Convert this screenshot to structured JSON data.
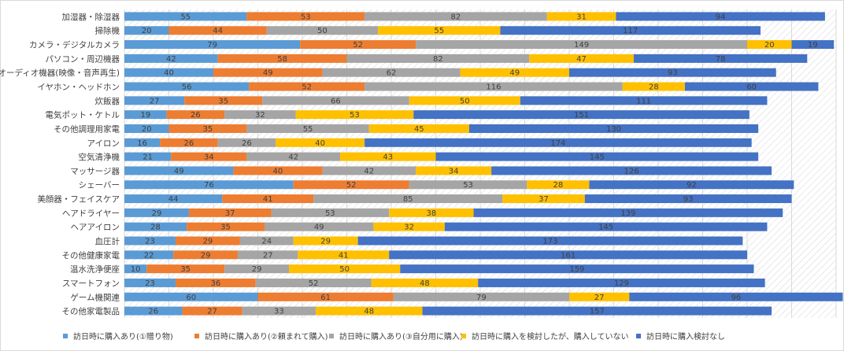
{
  "chart_data": {
    "type": "bar",
    "orientation": "horizontal",
    "stacked": true,
    "title": "",
    "xlabel": "",
    "ylabel": "",
    "xlim": [
      0,
      320
    ],
    "grid": true,
    "legend_position": "bottom",
    "categories": [
      "加湿器・除湿器",
      "掃除機",
      "カメラ・デジタルカメラ",
      "パソコン・周辺機器",
      "オーディオ機器(映像・音声再生)",
      "イヤホン・ヘッドホン",
      "炊飯器",
      "電気ポット・ケトル",
      "その他調理用家電",
      "アイロン",
      "空気清浄機",
      "マッサージ器",
      "シェーバー",
      "美顔器・フェイスケア",
      "ヘアドライヤー",
      "ヘアアイロン",
      "血圧計",
      "その他健康家電",
      "温水洗浄便座",
      "スマートフォン",
      "ゲーム機関連",
      "その他家電製品"
    ],
    "series": [
      {
        "name": "訪日時に購入あり(①贈り物)",
        "color": "#5b9bd5",
        "values": [
          55,
          20,
          79,
          42,
          40,
          56,
          27,
          19,
          20,
          16,
          21,
          49,
          76,
          44,
          29,
          28,
          23,
          22,
          10,
          23,
          60,
          26
        ]
      },
      {
        "name": "訪日時に購入あり(②頼まれて購入)",
        "color": "#ed7d31",
        "values": [
          53,
          44,
          52,
          58,
          49,
          52,
          35,
          26,
          35,
          26,
          34,
          40,
          52,
          41,
          37,
          35,
          29,
          29,
          35,
          36,
          61,
          27
        ]
      },
      {
        "name": "訪日時に購入あり(③自分用に購入)",
        "color": "#a5a5a5",
        "values": [
          82,
          50,
          149,
          82,
          62,
          116,
          66,
          32,
          55,
          26,
          42,
          42,
          53,
          85,
          53,
          49,
          24,
          27,
          29,
          52,
          79,
          33
        ]
      },
      {
        "name": "訪日時に購入を検討したが、購入していない",
        "color": "#ffc000",
        "values": [
          31,
          55,
          20,
          47,
          49,
          28,
          50,
          53,
          45,
          40,
          43,
          34,
          28,
          37,
          38,
          32,
          29,
          41,
          50,
          48,
          27,
          48
        ]
      },
      {
        "name": "訪日時に購入検討なし",
        "color": "#4472c4",
        "values": [
          94,
          117,
          19,
          78,
          93,
          60,
          111,
          151,
          130,
          174,
          145,
          126,
          92,
          93,
          139,
          145,
          173,
          161,
          159,
          129,
          96,
          157
        ]
      }
    ]
  }
}
